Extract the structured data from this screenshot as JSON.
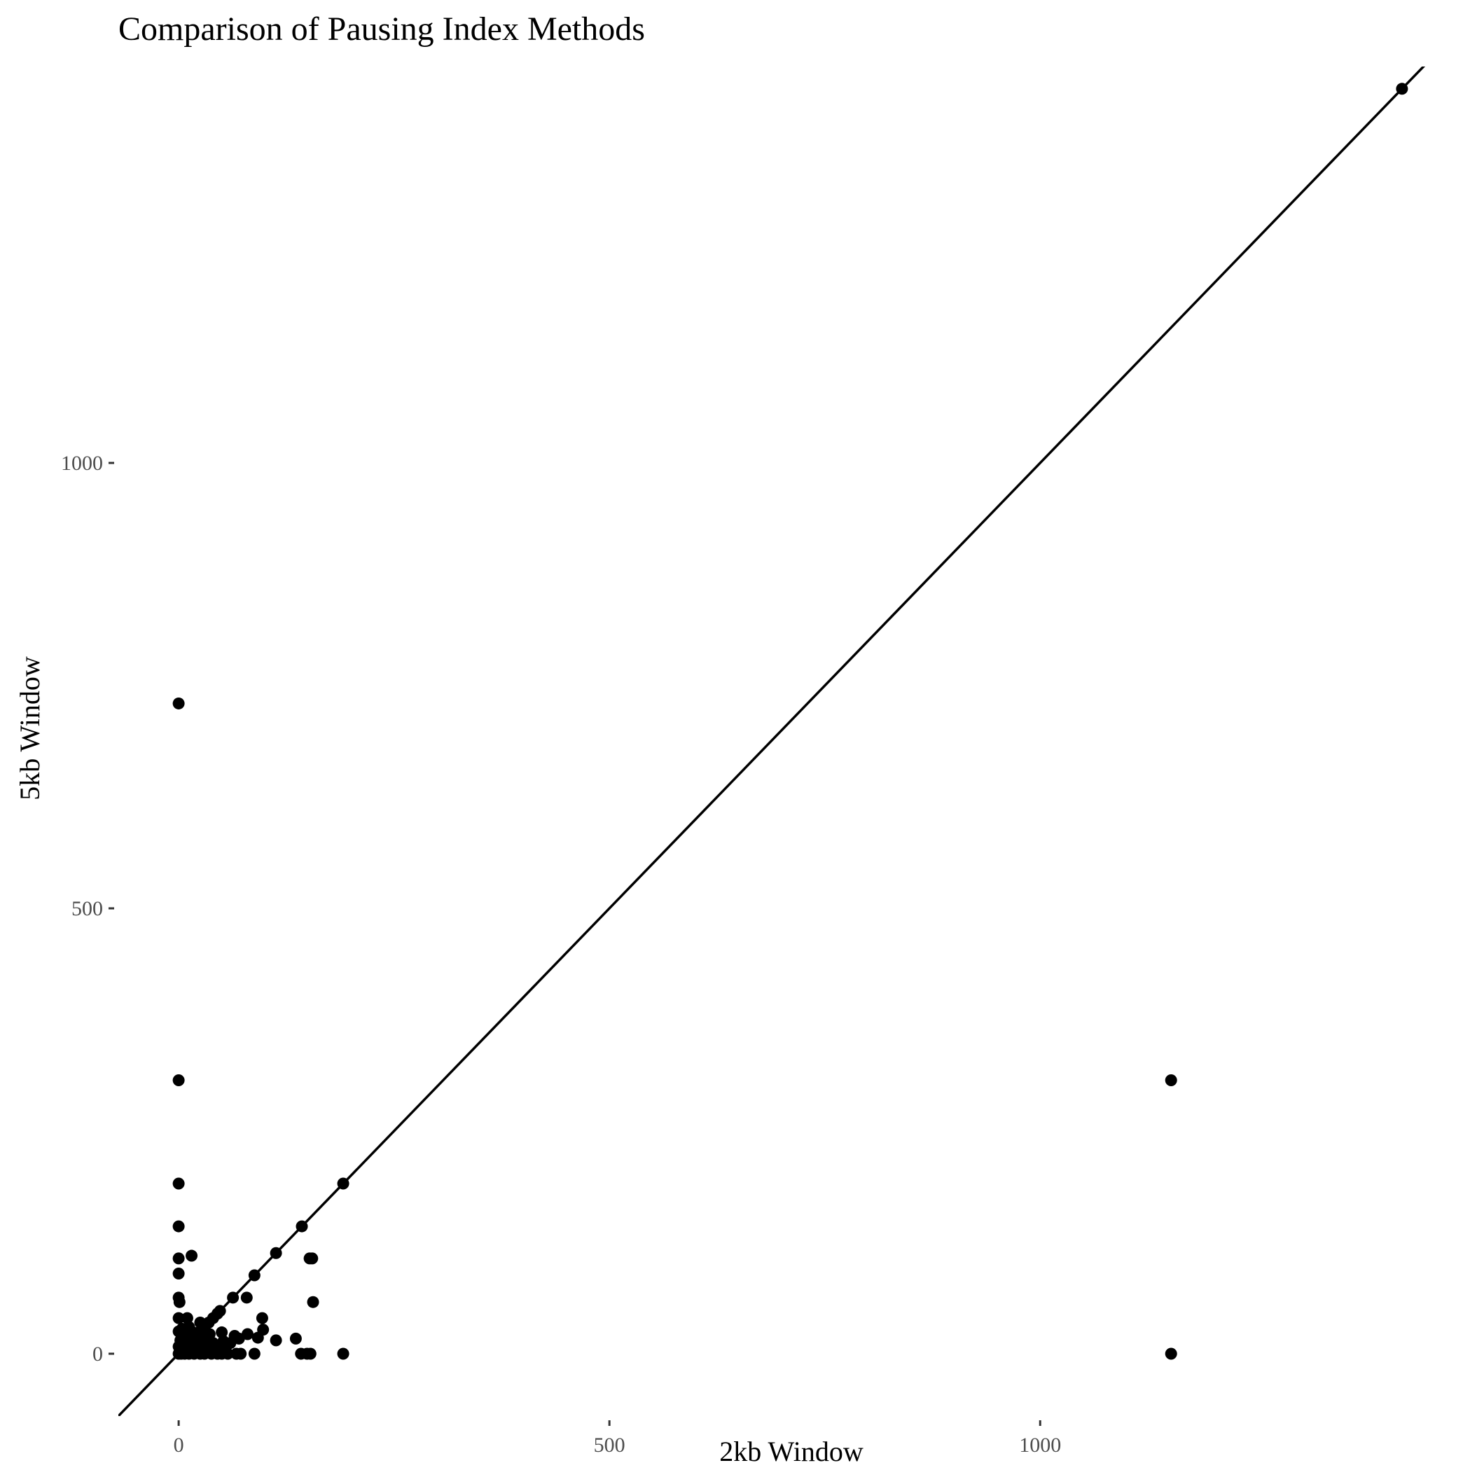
{
  "chart_data": {
    "type": "scatter",
    "title": "Comparison of Pausing Index Methods",
    "xlabel": "2kb Window",
    "ylabel": "5kb Window",
    "xlim": [
      -70,
      1490
    ],
    "ylim": [
      -70,
      1445
    ],
    "x_ticks": [
      0,
      500,
      1000
    ],
    "x_tick_labels": [
      "0",
      "500",
      "1000"
    ],
    "y_ticks": [
      0,
      500,
      1000
    ],
    "y_tick_labels": [
      "0",
      "500",
      "1000"
    ],
    "grid": false,
    "legend": "none",
    "reference_line": {
      "slope": 1,
      "intercept": 0
    },
    "point_color": "#000000",
    "points": [
      [
        1420,
        1420
      ],
      [
        0,
        730
      ],
      [
        0,
        307
      ],
      [
        1152,
        307
      ],
      [
        1152,
        0
      ],
      [
        191,
        191
      ],
      [
        191,
        0
      ],
      [
        143,
        143
      ],
      [
        113,
        113
      ],
      [
        152,
        107
      ],
      [
        155,
        107
      ],
      [
        156,
        58
      ],
      [
        149,
        0
      ],
      [
        153,
        0
      ],
      [
        142,
        0
      ],
      [
        136,
        17
      ],
      [
        113,
        15
      ],
      [
        97,
        40
      ],
      [
        98,
        27
      ],
      [
        88,
        88
      ],
      [
        88,
        0
      ],
      [
        79,
        63
      ],
      [
        80,
        22
      ],
      [
        92,
        18
      ],
      [
        63,
        63
      ],
      [
        67,
        0
      ],
      [
        57,
        0
      ],
      [
        72,
        0
      ],
      [
        70,
        17
      ],
      [
        65,
        20
      ],
      [
        0,
        191
      ],
      [
        0,
        143
      ],
      [
        0,
        107
      ],
      [
        15,
        110
      ],
      [
        0,
        90
      ],
      [
        0,
        63
      ],
      [
        1,
        58
      ],
      [
        0,
        40
      ],
      [
        10,
        40
      ],
      [
        0,
        25
      ],
      [
        2,
        15
      ],
      [
        0,
        8
      ],
      [
        0,
        0
      ],
      [
        3,
        0
      ],
      [
        7,
        0
      ],
      [
        12,
        0
      ],
      [
        18,
        0
      ],
      [
        25,
        0
      ],
      [
        30,
        0
      ],
      [
        38,
        0
      ],
      [
        45,
        0
      ],
      [
        50,
        0
      ],
      [
        5,
        5
      ],
      [
        10,
        10
      ],
      [
        15,
        15
      ],
      [
        20,
        20
      ],
      [
        25,
        25
      ],
      [
        30,
        30
      ],
      [
        35,
        35
      ],
      [
        40,
        40
      ],
      [
        45,
        45
      ],
      [
        48,
        48
      ],
      [
        8,
        20
      ],
      [
        12,
        30
      ],
      [
        18,
        12
      ],
      [
        22,
        8
      ],
      [
        28,
        18
      ],
      [
        32,
        10
      ],
      [
        36,
        22
      ],
      [
        40,
        12
      ],
      [
        44,
        6
      ],
      [
        50,
        24
      ],
      [
        52,
        14
      ],
      [
        55,
        8
      ],
      [
        60,
        12
      ],
      [
        25,
        35
      ],
      [
        15,
        25
      ],
      [
        6,
        12
      ],
      [
        4,
        28
      ],
      [
        9,
        3
      ],
      [
        14,
        6
      ],
      [
        20,
        2
      ],
      [
        26,
        5
      ],
      [
        33,
        3
      ]
    ]
  }
}
